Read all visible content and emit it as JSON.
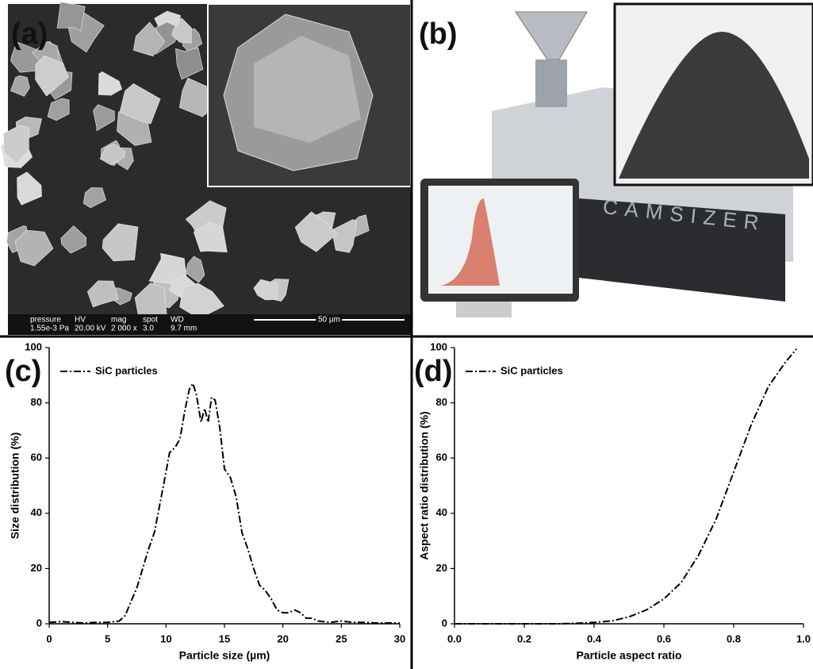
{
  "panels": [
    {
      "label": "(a)",
      "sem_bar": [
        {
          "name": "pressure",
          "value": "1.55e-3 Pa"
        },
        {
          "name": "HV",
          "value": "20.00 kV"
        },
        {
          "name": "mag",
          "value": "2 000 x"
        },
        {
          "name": "spot",
          "value": "3.0"
        },
        {
          "name": "WD",
          "value": "9.7 mm"
        }
      ],
      "scale_bar": "50 µm"
    },
    {
      "label": "(b)",
      "instrument_text": "CAMSIZER"
    }
  ],
  "chart_data": [
    {
      "type": "line",
      "label": "(c)",
      "x_label": "Particle size (µm)",
      "y_label": "Size distribution (%)",
      "legend": "upper left",
      "x": [
        0,
        1,
        2,
        3,
        4,
        5,
        6,
        6.5,
        7,
        7.5,
        8,
        8.5,
        9,
        9.5,
        10,
        10.3,
        10.8,
        11.2,
        11.6,
        12,
        12.3,
        12.6,
        13,
        13.3,
        13.6,
        13.9,
        14.2,
        14.6,
        15,
        15.5,
        16,
        16.5,
        17,
        17.5,
        18,
        18.5,
        19,
        19.5,
        20,
        20.5,
        21,
        21.5,
        22,
        22.5,
        23,
        24,
        25,
        26,
        27,
        28,
        30
      ],
      "series": [
        {
          "name": "SiC particles",
          "color": "#000000",
          "values": [
            0.5,
            0.8,
            0.5,
            0.3,
            0.5,
            0.5,
            1,
            3,
            8,
            13,
            20,
            27,
            33,
            44,
            55,
            62,
            64,
            67,
            77,
            85,
            87,
            83,
            73,
            78,
            73,
            82,
            81,
            71,
            56,
            53,
            46,
            33,
            27,
            20,
            14,
            12,
            9,
            5,
            4,
            4,
            5,
            4,
            2,
            2,
            1,
            0.5,
            1,
            0.5,
            0.5,
            0.3,
            0.3
          ]
        }
      ],
      "xlim": [
        0,
        30
      ],
      "xticks": [
        0,
        5,
        10,
        15,
        20,
        25,
        30
      ],
      "ylim": [
        0,
        100
      ],
      "yticks": [
        0,
        20,
        40,
        60,
        80,
        100
      ]
    },
    {
      "type": "line",
      "label": "(d)",
      "x_label": "Particle aspect ratio",
      "y_label": "Aspect ratio distribution (%)",
      "legend": "upper left",
      "x": [
        0,
        0.1,
        0.2,
        0.3,
        0.35,
        0.4,
        0.45,
        0.5,
        0.55,
        0.6,
        0.65,
        0.7,
        0.75,
        0.8,
        0.85,
        0.9,
        0.95,
        0.98
      ],
      "series": [
        {
          "name": "SiC particles",
          "color": "#000000",
          "values": [
            0,
            0,
            0,
            0,
            0.2,
            0.5,
            1,
            2.5,
            5,
            9,
            15,
            25,
            38,
            55,
            72,
            86,
            95,
            99.5
          ]
        }
      ],
      "xlim": [
        0,
        1
      ],
      "xticks": [
        {
          "value": 0,
          "label": "0.0"
        },
        0.2,
        0.4,
        0.6,
        0.8,
        {
          "value": 1,
          "label": "1.0"
        }
      ],
      "ylim": [
        0,
        100
      ],
      "yticks": [
        0,
        20,
        40,
        60,
        80,
        100
      ]
    }
  ]
}
